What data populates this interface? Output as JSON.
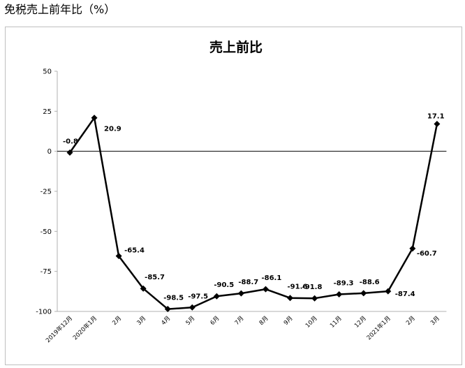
{
  "page": {
    "heading": "免税売上前年比（%）"
  },
  "chart_data": {
    "type": "line",
    "title": "売上前比",
    "xlabel": "",
    "ylabel": "",
    "ylim": [
      -100,
      50
    ],
    "yticks": [
      50,
      25,
      0,
      -25,
      -50,
      -75,
      -100
    ],
    "grid": false,
    "legend": "none",
    "categories": [
      "2019年12月",
      "2020年1月",
      "2月",
      "3月",
      "4月",
      "5月",
      "6月",
      "7月",
      "8月",
      "9月",
      "10月",
      "11月",
      "12月",
      "2021年1月",
      "2月",
      "3月"
    ],
    "series": [
      {
        "values": [
          -0.8,
          20.9,
          -65.4,
          -85.7,
          -98.5,
          -97.5,
          -90.5,
          -88.7,
          -86.1,
          -91.6,
          -91.8,
          -89.3,
          -88.6,
          -87.4,
          -60.7,
          17.1
        ],
        "labels": [
          "-0.8",
          "20.9",
          "-65.4",
          "-85.7",
          "-98.5",
          "-97.5",
          "-90.5",
          "-88.7",
          "-86.1",
          "-91.6",
          "-91.8",
          "-89.3",
          "-88.6",
          "-87.4",
          "-60.7",
          "17.1"
        ],
        "color": "#000000"
      }
    ]
  }
}
